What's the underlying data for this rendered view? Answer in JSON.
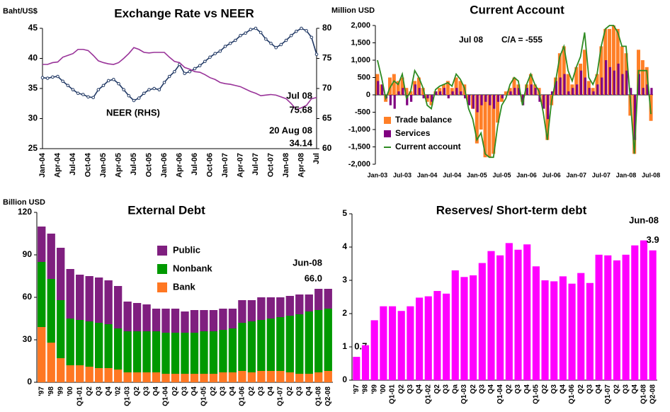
{
  "chart_data": [
    {
      "type": "line",
      "title": "Exchange Rate vs NEER",
      "y_label": "Baht/US$",
      "categories": [
        "Jan-04",
        null,
        null,
        "Apr-04",
        null,
        null,
        "Jul-04",
        null,
        null,
        "Oct-04",
        null,
        null,
        "Jan-05",
        null,
        null,
        "Apr-05",
        null,
        null,
        "Jul-05",
        null,
        null,
        "Oct-05",
        null,
        null,
        "Jan-06",
        null,
        null,
        "Apr-06",
        null,
        null,
        "Jul-06",
        null,
        null,
        "Oct-06",
        null,
        null,
        "Jan-07",
        null,
        null,
        "Apr-07",
        null,
        null,
        "Jul-07",
        null,
        null,
        "Oct-07",
        null,
        null,
        "Jan-08",
        null,
        null,
        "Apr-08",
        null,
        null,
        "Jul"
      ],
      "series": [
        {
          "name": "NEER (RHS)",
          "color": "#203864",
          "axis": "y2",
          "marker": true,
          "values": [
            71.8,
            71.7,
            71.9,
            72.0,
            71.2,
            70.5,
            69.8,
            69.2,
            69.0,
            68.6,
            68.5,
            69.8,
            70.5,
            71.3,
            71.5,
            70.8,
            69.8,
            68.8,
            68.0,
            68.4,
            69.2,
            69.8,
            70.0,
            69.8,
            71.0,
            72.0,
            72.8,
            74.0,
            72.5,
            72.8,
            73.3,
            73.8,
            74.5,
            75.2,
            75.8,
            76.2,
            77.0,
            77.5,
            78.0,
            78.8,
            79.2,
            79.8,
            80.0,
            79.3,
            78.2,
            77.5,
            76.8,
            77.3,
            78.0,
            78.8,
            79.5,
            80.0,
            79.6,
            78.5,
            75.68
          ]
        },
        {
          "color": "#993399",
          "values": [
            39.0,
            39.0,
            39.3,
            39.4,
            40.2,
            40.5,
            40.8,
            41.5,
            41.5,
            41.3,
            40.5,
            39.6,
            39.3,
            39.1,
            39.0,
            39.3,
            40.0,
            40.8,
            41.8,
            41.5,
            41.0,
            40.9,
            41.0,
            41.0,
            41.0,
            40.2,
            39.5,
            39.3,
            38.5,
            38.2,
            37.8,
            37.7,
            37.3,
            36.8,
            36.5,
            36.0,
            35.8,
            35.7,
            35.5,
            35.3,
            34.9,
            34.5,
            34.2,
            33.8,
            33.9,
            34.0,
            33.9,
            33.6,
            33.3,
            32.5,
            31.5,
            31.8,
            32.2,
            33.3,
            33.5
          ]
        }
      ],
      "ylim": [
        25,
        45
      ],
      "yticks": [
        25,
        30,
        35,
        40,
        45
      ],
      "y2lim": [
        60,
        80
      ],
      "y2ticks": [
        60,
        65,
        70,
        75,
        80
      ],
      "annotations": [
        {
          "text": "Jul 08",
          "color": "#203864"
        },
        {
          "text": "75.68",
          "color": "#203864"
        },
        {
          "text": "20 Aug 08",
          "color": "#993399"
        },
        {
          "text": "34.14",
          "color": "#993399"
        }
      ]
    },
    {
      "type": "combo",
      "title": "Current Account",
      "y_label": "Million USD",
      "categories": [
        "Jan-03",
        null,
        null,
        null,
        null,
        null,
        "Jul-03",
        null,
        null,
        null,
        null,
        null,
        "Jan-04",
        null,
        null,
        null,
        null,
        null,
        "Jul-04",
        null,
        null,
        null,
        null,
        null,
        "Jan-05",
        null,
        null,
        null,
        null,
        null,
        "Jul-05",
        null,
        null,
        null,
        null,
        null,
        "Jan-06",
        null,
        null,
        null,
        null,
        null,
        "Jul-06",
        null,
        null,
        null,
        null,
        null,
        "Jan-07",
        null,
        null,
        null,
        null,
        null,
        "Jul-07",
        null,
        null,
        null,
        null,
        null,
        "Jan-08",
        null,
        null,
        null,
        null,
        null,
        "Jul-08"
      ],
      "series": [
        {
          "name": "Trade balance",
          "color": "#ff7f27",
          "type": "bar",
          "values": [
            600,
            300,
            -200,
            500,
            600,
            400,
            500,
            200,
            100,
            400,
            500,
            200,
            -200,
            -300,
            100,
            200,
            300,
            400,
            200,
            500,
            400,
            300,
            -200,
            -400,
            -1400,
            -1000,
            -1800,
            -1800,
            -1700,
            -800,
            -200,
            100,
            200,
            500,
            300,
            -200,
            300,
            600,
            300,
            200,
            -300,
            -1300,
            -300,
            500,
            1200,
            1400,
            600,
            300,
            800,
            900,
            1300,
            400,
            200,
            600,
            1400,
            1900,
            1900,
            2000,
            1900,
            1400,
            1200,
            -600,
            -1700,
            1300,
            1000,
            800,
            -750
          ]
        },
        {
          "name": "Services",
          "color": "#800080",
          "type": "bar",
          "values": [
            400,
            300,
            -100,
            -300,
            -400,
            100,
            200,
            -300,
            -200,
            300,
            200,
            -100,
            -100,
            -200,
            100,
            100,
            200,
            -100,
            100,
            200,
            100,
            -100,
            -300,
            -400,
            -500,
            -300,
            -200,
            -300,
            -400,
            -200,
            -100,
            0,
            100,
            200,
            200,
            -300,
            200,
            300,
            200,
            -200,
            -400,
            -700,
            100,
            400,
            500,
            600,
            100,
            200,
            300,
            700,
            500,
            200,
            100,
            300,
            500,
            1000,
            800,
            700,
            900,
            600,
            700,
            200,
            -1300,
            600,
            200,
            300,
            200
          ]
        },
        {
          "name": "Current account",
          "color": "#2e8b22",
          "type": "line",
          "values": [
            1000,
            500,
            -100,
            200,
            400,
            300,
            600,
            -100,
            100,
            700,
            500,
            200,
            -300,
            -400,
            150,
            250,
            300,
            350,
            250,
            600,
            450,
            200,
            -400,
            -700,
            -1300,
            -1100,
            -1700,
            -1800,
            -1800,
            -900,
            -300,
            -100,
            300,
            500,
            400,
            -300,
            300,
            600,
            300,
            100,
            -500,
            -1300,
            -200,
            400,
            1100,
            1400,
            700,
            400,
            800,
            1100,
            1800,
            500,
            300,
            600,
            1400,
            1900,
            2000,
            2000,
            1800,
            1400,
            1400,
            -100,
            -1700,
            700,
            700,
            700,
            -555
          ]
        }
      ],
      "ylim": [
        -2000,
        2000
      ],
      "yticks": [
        {
          "value": -2000,
          "label": "-2,000"
        },
        {
          "value": -1500,
          "label": "-1,500"
        },
        {
          "value": -1000,
          "label": "-1,000"
        },
        -500,
        0,
        500,
        {
          "value": 1000,
          "label": "1,000"
        },
        {
          "value": 1500,
          "label": "1,500"
        },
        {
          "value": 2000,
          "label": "2,000"
        }
      ],
      "legend": "lower left",
      "annotations": [
        {
          "text": "Jul 08",
          "color": "#203864"
        },
        {
          "text": "C/A = -555",
          "color": "#203864"
        }
      ]
    },
    {
      "type": "stacked_bar",
      "title": "External Debt",
      "y_label": "Billion USD",
      "categories": [
        "'97",
        "'98",
        "'99",
        "'00",
        "Q1-01",
        "Q2",
        "Q3",
        "Q4",
        "'02",
        "Q1-03",
        "Q2",
        "Q3",
        "Q4",
        "Q1-04",
        "Q2",
        "Q3",
        "Q4",
        "Q1-05",
        "Q2",
        "Q3",
        "Q4",
        "Q1-06",
        "Q2",
        "Q3",
        "Q4",
        "Q1-07",
        "Q2",
        "Q3",
        "Q4",
        "Q1-08",
        "Q2-08"
      ],
      "series": [
        {
          "name": "Bank",
          "color": "#ff7722",
          "values": [
            39,
            28,
            17,
            12,
            12,
            11,
            10,
            10,
            9,
            7,
            7,
            7,
            7,
            6,
            6,
            6,
            6,
            6,
            6,
            7,
            7,
            8,
            7,
            8,
            8,
            8,
            7,
            6,
            6,
            7,
            8
          ]
        },
        {
          "name": "Nonbank",
          "color": "#009900",
          "values": [
            46,
            45,
            41,
            33,
            32,
            32,
            32,
            31,
            29,
            29,
            29,
            29,
            29,
            29,
            29,
            29,
            29,
            30,
            30,
            30,
            31,
            34,
            36,
            36,
            37,
            38,
            40,
            42,
            44,
            44,
            44
          ]
        },
        {
          "name": "Public",
          "color": "#7f1f7f",
          "values": [
            25,
            32,
            37,
            35,
            32,
            32,
            32,
            31,
            30,
            21,
            20,
            19,
            16,
            17,
            17,
            15,
            16,
            15,
            15,
            15,
            14,
            16,
            15,
            16,
            15,
            14,
            14,
            14,
            12,
            15,
            14
          ]
        }
      ],
      "ylim": [
        0,
        120
      ],
      "yticks": [
        0,
        30,
        60,
        90,
        120
      ],
      "annotations": [
        {
          "text": "Jun-08",
          "color": "#203864"
        },
        {
          "text": "66.0",
          "color": "#203864"
        }
      ]
    },
    {
      "type": "bar",
      "title": "Reserves/ Short-term debt",
      "categories": [
        "'97",
        "'98",
        "'99",
        "'00",
        "Q1-01",
        "Q2",
        "Q3",
        "Q4",
        "Q1-02",
        "Q2",
        "Q3",
        "Qa",
        "Q1-03",
        "Q2",
        "Q3",
        "Q4",
        "Q1-04",
        "Q2",
        "Q3",
        "Q4",
        "Q1-05",
        "Q2",
        "Q3",
        "Q4",
        "Q1-06",
        "Q2",
        "Q3",
        "Q4",
        "Q1-07",
        "Q2",
        "Q3",
        "Q4",
        "Q1-08",
        "Q2-08"
      ],
      "values": [
        0.7,
        1.05,
        1.8,
        2.22,
        2.22,
        2.08,
        2.22,
        2.48,
        2.52,
        2.68,
        2.6,
        3.3,
        3.1,
        3.15,
        3.52,
        3.88,
        3.75,
        4.12,
        3.92,
        4.08,
        3.42,
        3.0,
        2.97,
        3.12,
        2.9,
        3.22,
        2.92,
        3.77,
        3.75,
        3.6,
        3.77,
        4.05,
        4.2,
        3.9
      ],
      "value_labels": [
        "0.7",
        null,
        null,
        null,
        null,
        null,
        null,
        null,
        null,
        null,
        null,
        null,
        null,
        null,
        null,
        null,
        null,
        null,
        null,
        null,
        null,
        null,
        null,
        null,
        null,
        null,
        null,
        null,
        null,
        null,
        null,
        null,
        null,
        "3.9"
      ],
      "color": "#ff00ff",
      "ylim": [
        0,
        5
      ],
      "yticks": [
        0,
        1,
        2,
        3,
        4,
        5
      ],
      "annotations": [
        {
          "text": "Jun-08",
          "color": "#203864"
        }
      ]
    }
  ]
}
